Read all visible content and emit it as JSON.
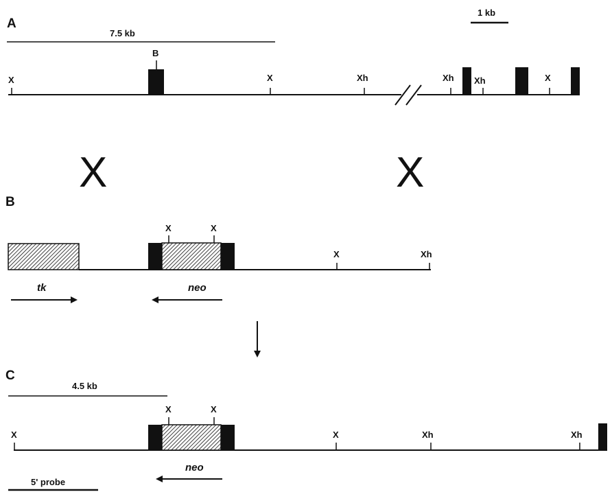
{
  "panels": {
    "a": {
      "label": "A",
      "scale_label": "7.5 kb",
      "scale_bar_label": "1 kb",
      "site_b": "B"
    },
    "b": {
      "label": "B",
      "gene_tk": "tk",
      "gene_neo": "neo"
    },
    "c": {
      "label": "C",
      "scale_label": "4.5 kb",
      "gene_neo": "neo",
      "probe_label": "5' probe"
    }
  },
  "crossover_mark": "X",
  "sites": {
    "xba": "X",
    "xho": "Xh"
  },
  "colors": {
    "ink": "#111111",
    "background": "#ffffff",
    "hatch": "#999999"
  }
}
